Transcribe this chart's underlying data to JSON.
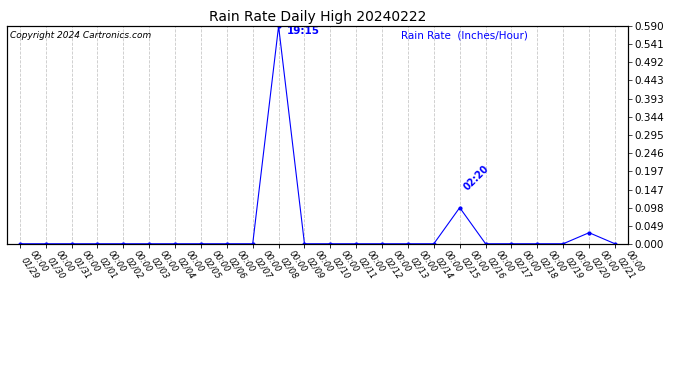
{
  "title": "Rain Rate Daily High 20240222",
  "copyright": "Copyright 2024 Cartronics.com",
  "ylabel_right": "Rain Rate  (Inches/Hour)",
  "peak_label": "19:15",
  "second_label": "02:20",
  "line_color": "blue",
  "background_color": "#ffffff",
  "grid_color": "#bbbbbb",
  "ylim": [
    0.0,
    0.59
  ],
  "yticks": [
    0.0,
    0.049,
    0.098,
    0.147,
    0.197,
    0.246,
    0.295,
    0.344,
    0.393,
    0.443,
    0.492,
    0.541,
    0.59
  ],
  "dates": [
    "01/29",
    "01/30",
    "01/31",
    "02/01",
    "02/02",
    "02/03",
    "02/04",
    "02/05",
    "02/06",
    "02/07",
    "02/08",
    "02/09",
    "02/10",
    "02/11",
    "02/12",
    "02/13",
    "02/14",
    "02/15",
    "02/16",
    "02/17",
    "02/18",
    "02/19",
    "02/20",
    "02/21"
  ],
  "values": [
    0.0,
    0.0,
    0.0,
    0.0,
    0.0,
    0.0,
    0.0,
    0.0,
    0.0,
    0.0,
    0.59,
    0.0,
    0.0,
    0.0,
    0.0,
    0.0,
    0.0,
    0.098,
    0.0,
    0.0,
    0.0,
    0.0,
    0.03,
    0.0
  ],
  "peak_idx": 10,
  "second_idx": 17,
  "figsize": [
    6.9,
    3.75
  ],
  "dpi": 100
}
